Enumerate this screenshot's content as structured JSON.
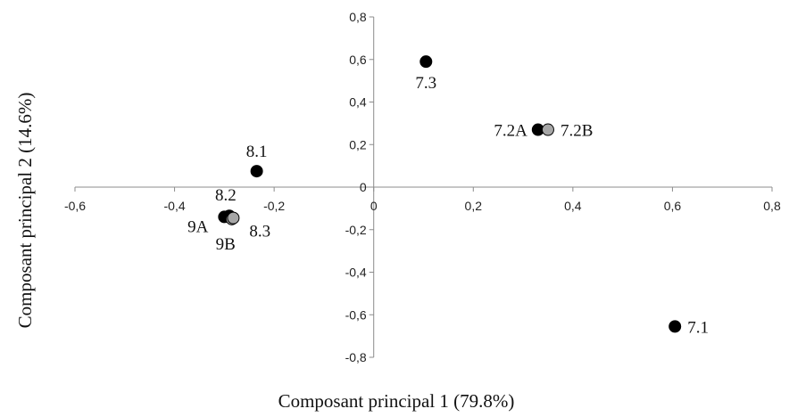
{
  "chart_data": {
    "type": "scatter",
    "xlabel": "Composant principal 1 (79.8%)",
    "ylabel": "Composant principal 2 (14.6%)",
    "xlim": [
      -0.6,
      0.8
    ],
    "ylim": [
      -0.8,
      0.8
    ],
    "x_ticks": [
      -0.6,
      -0.4,
      -0.2,
      0,
      0.2,
      0.4,
      0.6,
      0.8
    ],
    "y_ticks": [
      0.8,
      0.6,
      0.4,
      0.2,
      0,
      -0.2,
      -0.4,
      -0.6,
      -0.8
    ],
    "x_tick_labels": [
      "-0,6",
      "-0,4",
      "-0,2",
      "0",
      "0,2",
      "0,4",
      "0,6",
      "0,8"
    ],
    "y_tick_labels": [
      "0,8",
      "0,6",
      "0,4",
      "0,2",
      "0",
      "-0,2",
      "-0,4",
      "-0,6",
      "-0,8"
    ],
    "grid": false,
    "legend": "none",
    "colors": {
      "black": "#000000",
      "grey": "#a6a6a6"
    },
    "points": [
      {
        "label": "7.3",
        "x": 0.105,
        "y": 0.59,
        "color": "black",
        "label_pos": "below"
      },
      {
        "label": "7.2A",
        "x": 0.33,
        "y": 0.27,
        "color": "black",
        "label_pos": "left"
      },
      {
        "label": "7.2B",
        "x": 0.35,
        "y": 0.27,
        "color": "grey",
        "label_pos": "right"
      },
      {
        "label": "8.1",
        "x": -0.235,
        "y": 0.075,
        "color": "black",
        "label_pos": "above"
      },
      {
        "label": "8.2",
        "x": -0.29,
        "y": -0.135,
        "color": "black",
        "label_pos": "above"
      },
      {
        "label": "9A",
        "x": -0.3,
        "y": -0.14,
        "color": "black",
        "label_pos": "left-below"
      },
      {
        "label": "9B",
        "x": -0.285,
        "y": -0.15,
        "color": "grey",
        "label_pos": "below"
      },
      {
        "label": "8.3",
        "x": -0.282,
        "y": -0.145,
        "color": "grey",
        "label_pos": "right-below"
      },
      {
        "label": "7.1",
        "x": 0.605,
        "y": -0.655,
        "color": "black",
        "label_pos": "right"
      }
    ]
  }
}
